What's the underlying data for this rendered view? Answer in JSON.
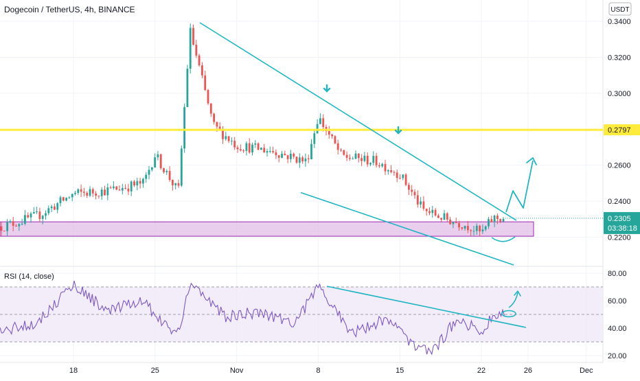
{
  "header": {
    "title": "Dogecoin / TetherUS, 4h, BINANCE",
    "currency_badge": "USDT"
  },
  "price_axis": {
    "ticks": [
      "0.3400",
      "0.3200",
      "0.3000",
      "0.2600",
      "0.2400",
      "0.2200"
    ],
    "horizontal_line_label": "0.2797",
    "current_price_label": "0.2305",
    "countdown_label": "03:38:18"
  },
  "time_axis": {
    "ticks": [
      "18",
      "25",
      "Nov",
      "8",
      "15",
      "22",
      "26",
      "Dec"
    ]
  },
  "rsi_panel": {
    "label": "RSI (14, close)",
    "ticks": [
      "80.00",
      "60.00",
      "40.00",
      "20.00"
    ]
  },
  "colors": {
    "up": "#26a69a",
    "down": "#ef5350",
    "yellow_line": "#ffeb3b",
    "trendline": "#21b5c4",
    "support_zone_fill": "#e1bee7",
    "support_zone_border": "#9c27b0",
    "rsi_line": "#7e57c2",
    "rsi_band": "#ede7f6",
    "current_price": "#26a69a"
  },
  "chart_data": {
    "type": "candlestick",
    "title": "Dogecoin / TetherUS, 4h, BINANCE",
    "xlabel": "",
    "ylabel": "",
    "x_ticks": [
      "18",
      "25",
      "Nov",
      "8",
      "15",
      "22",
      "26",
      "Dec"
    ],
    "y_ticks": [
      0.34,
      0.32,
      0.3,
      0.26,
      0.24,
      0.22
    ],
    "ylim": [
      0.2045,
      0.3519
    ],
    "grid": true,
    "price_path": [
      {
        "x": "Oct 12",
        "close": 0.226
      },
      {
        "x": "Oct 15",
        "close": 0.232
      },
      {
        "x": "Oct 18",
        "close": 0.244
      },
      {
        "x": "Oct 21",
        "close": 0.246
      },
      {
        "x": "Oct 24",
        "close": 0.25
      },
      {
        "x": "Oct 25",
        "close": 0.266
      },
      {
        "x": "Oct 27",
        "close": 0.245
      },
      {
        "x": "Oct 28",
        "close": 0.335
      },
      {
        "x": "Oct 30",
        "close": 0.282
      },
      {
        "x": "Nov 1",
        "close": 0.271
      },
      {
        "x": "Nov 4",
        "close": 0.268
      },
      {
        "x": "Nov 7",
        "close": 0.262
      },
      {
        "x": "Nov 8",
        "close": 0.287
      },
      {
        "x": "Nov 10",
        "close": 0.265
      },
      {
        "x": "Nov 13",
        "close": 0.262
      },
      {
        "x": "Nov 15",
        "close": 0.255
      },
      {
        "x": "Nov 17",
        "close": 0.235
      },
      {
        "x": "Nov 19",
        "close": 0.23
      },
      {
        "x": "Nov 21",
        "close": 0.226
      },
      {
        "x": "Nov 22",
        "close": 0.222
      },
      {
        "x": "Nov 23",
        "close": 0.2305
      }
    ],
    "horizontal_line": 0.2797,
    "current_price": 0.2305,
    "support_zone": [
      0.2205,
      0.2285
    ],
    "rsi": {
      "label": "RSI (14, close)",
      "ylim": [
        15,
        84
      ],
      "upper_band": 70,
      "lower_band": 30,
      "path": [
        {
          "x": "Oct 12",
          "value": 38
        },
        {
          "x": "Oct 15",
          "value": 45
        },
        {
          "x": "Oct 18",
          "value": 72
        },
        {
          "x": "Oct 21",
          "value": 52
        },
        {
          "x": "Oct 24",
          "value": 60
        },
        {
          "x": "Oct 26",
          "value": 41
        },
        {
          "x": "Oct 27",
          "value": 36
        },
        {
          "x": "Oct 28",
          "value": 74
        },
        {
          "x": "Oct 31",
          "value": 48
        },
        {
          "x": "Nov 3",
          "value": 52
        },
        {
          "x": "Nov 6",
          "value": 44
        },
        {
          "x": "Nov 8",
          "value": 70
        },
        {
          "x": "Nov 11",
          "value": 36
        },
        {
          "x": "Nov 14",
          "value": 48
        },
        {
          "x": "Nov 16",
          "value": 28
        },
        {
          "x": "Nov 18",
          "value": 24
        },
        {
          "x": "Nov 20",
          "value": 48
        },
        {
          "x": "Nov 22",
          "value": 36
        },
        {
          "x": "Nov 23",
          "value": 50
        }
      ]
    }
  }
}
